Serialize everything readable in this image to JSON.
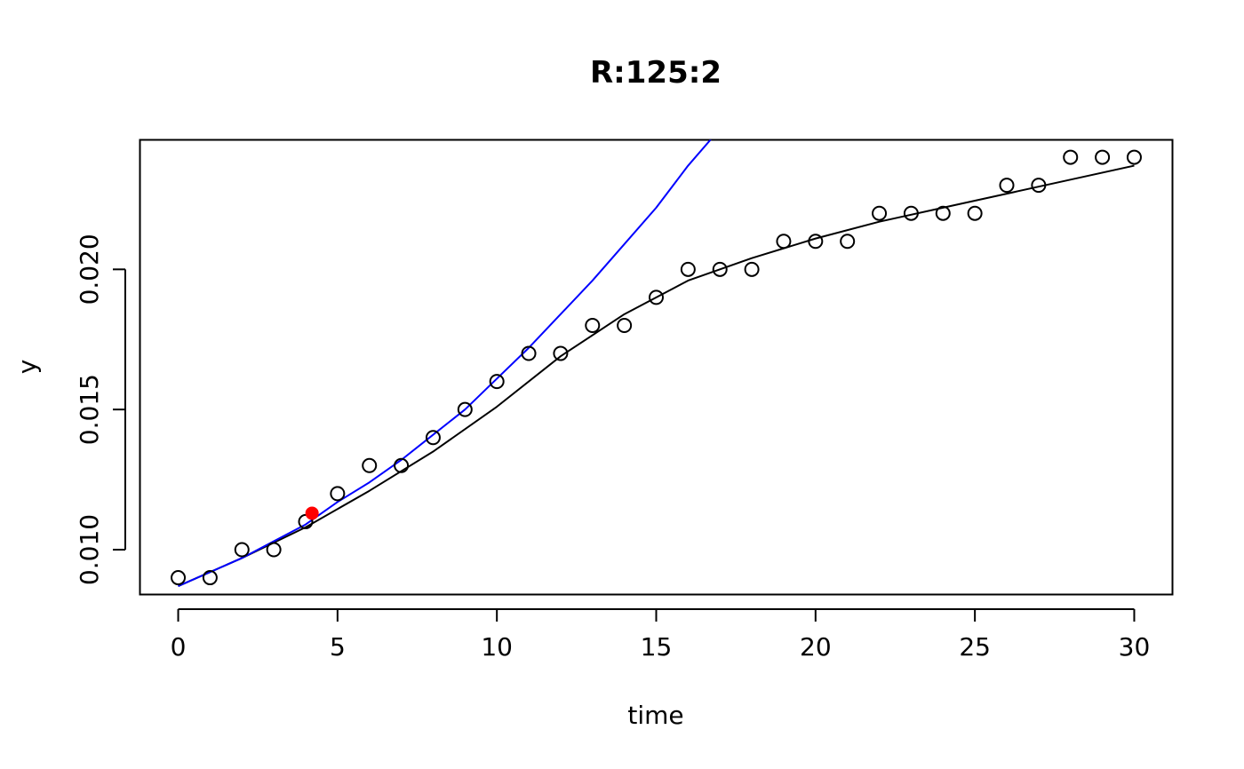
{
  "chart_data": {
    "type": "scatter",
    "title": "R:125:2",
    "xlabel": "time",
    "ylabel": "y",
    "xlim": [
      -1.2,
      31.2
    ],
    "ylim": [
      0.0084,
      0.02462
    ],
    "x_ticks": [
      0,
      5,
      10,
      15,
      20,
      25,
      30
    ],
    "x_tick_labels": [
      "0",
      "5",
      "10",
      "15",
      "20",
      "25",
      "30"
    ],
    "y_ticks": [
      0.01,
      0.015,
      0.02
    ],
    "y_tick_labels": [
      "0.010",
      "0.015",
      "0.020"
    ],
    "grid": false,
    "legend": "none",
    "series": [
      {
        "type": "scatter",
        "marker": "open-circle",
        "color": "#000000",
        "x": [
          0,
          1,
          2,
          3,
          4,
          5,
          6,
          7,
          8,
          9,
          10,
          11,
          12,
          13,
          14,
          15,
          16,
          17,
          18,
          19,
          20,
          21,
          22,
          23,
          24,
          25,
          26,
          27,
          28,
          29,
          30
        ],
        "y": [
          0.009,
          0.009,
          0.01,
          0.01,
          0.011,
          0.012,
          0.013,
          0.013,
          0.014,
          0.015,
          0.016,
          0.017,
          0.017,
          0.018,
          0.018,
          0.019,
          0.02,
          0.02,
          0.02,
          0.021,
          0.021,
          0.021,
          0.022,
          0.022,
          0.022,
          0.022,
          0.023,
          0.023,
          0.024,
          0.024,
          0.024
        ]
      },
      {
        "type": "line",
        "color": "#000000",
        "x": [
          0,
          2,
          4,
          6,
          8,
          10,
          12,
          14,
          16,
          18,
          20,
          22,
          24,
          26,
          28,
          30
        ],
        "y": [
          0.0087,
          0.0097,
          0.0108,
          0.0121,
          0.0135,
          0.0151,
          0.0169,
          0.0184,
          0.0196,
          0.0204,
          0.0211,
          0.0217,
          0.0222,
          0.0227,
          0.0232,
          0.0237
        ]
      },
      {
        "type": "line",
        "color": "#0000ff",
        "x": [
          0,
          1,
          2,
          3,
          4,
          5,
          6,
          7,
          8,
          9,
          10,
          11,
          12,
          13,
          14,
          15,
          16,
          16.8
        ],
        "y": [
          0.0087,
          0.0092,
          0.0097,
          0.0103,
          0.0109,
          0.0117,
          0.0124,
          0.0132,
          0.0141,
          0.015,
          0.0161,
          0.0172,
          0.0184,
          0.0196,
          0.0209,
          0.0222,
          0.0237,
          0.02475
        ]
      },
      {
        "type": "point",
        "marker": "filled-circle",
        "color": "#ff0000",
        "x": [
          4.2
        ],
        "y": [
          0.0113
        ]
      }
    ]
  }
}
